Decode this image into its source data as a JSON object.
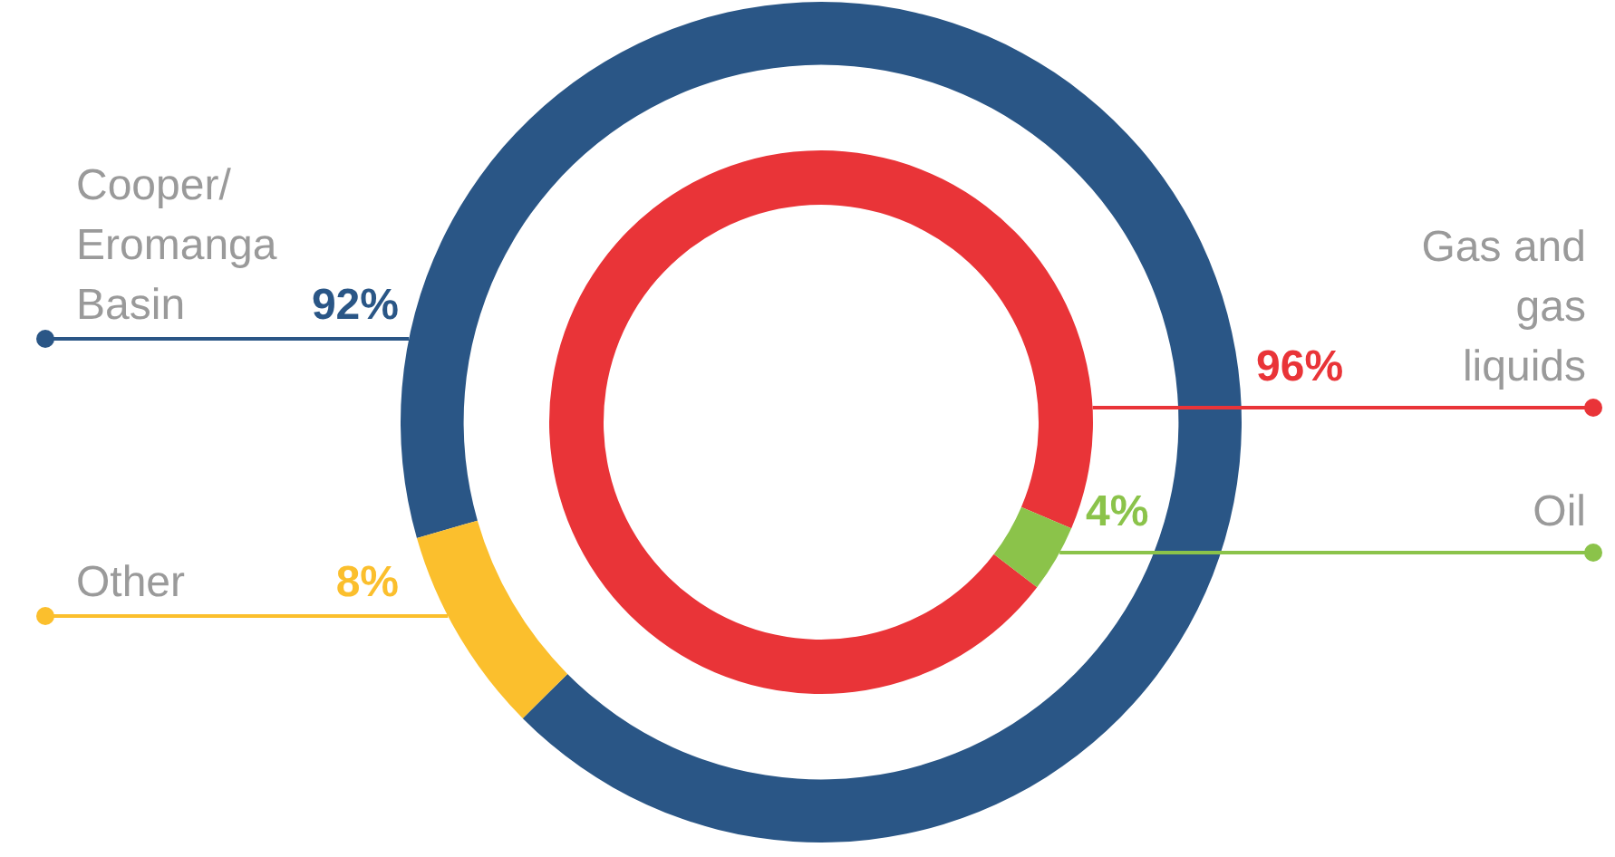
{
  "chart_data": [
    {
      "type": "donut",
      "categories": [
        "Cooper/ Eromanga Basin",
        "Other"
      ],
      "values": [
        92,
        8
      ],
      "colors": [
        "#2a5686",
        "#fbbf2d"
      ],
      "value_labels": [
        "92%",
        "8%"
      ],
      "legend": false
    },
    {
      "type": "donut",
      "categories": [
        "Gas and gas liquids",
        "Oil"
      ],
      "values": [
        96,
        4
      ],
      "colors": [
        "#e93438",
        "#8bc34a"
      ],
      "value_labels": [
        "96%",
        "4%"
      ],
      "legend": false
    }
  ]
}
